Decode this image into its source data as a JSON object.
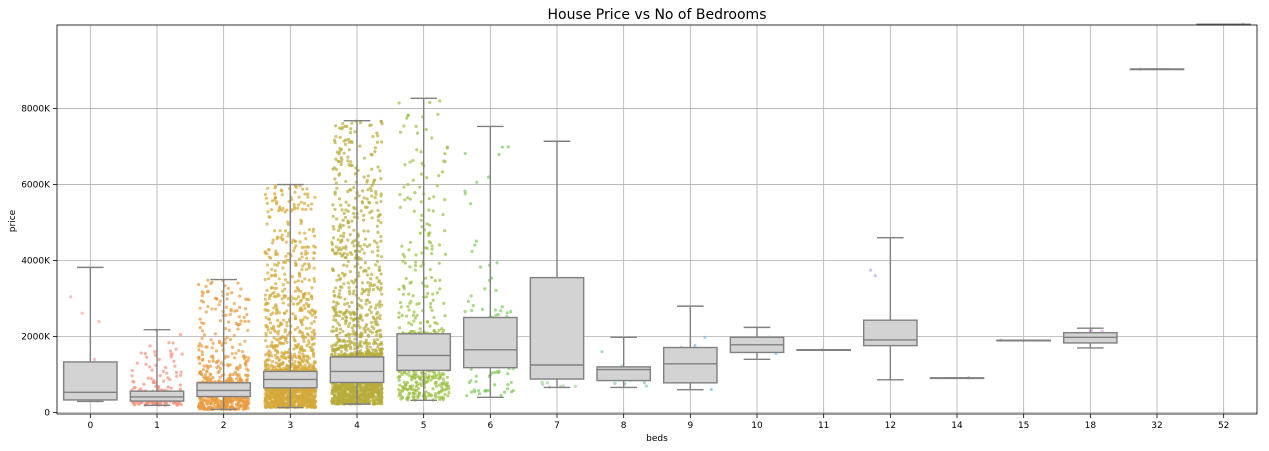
{
  "chart_data": {
    "type": "box",
    "title": "House Price vs No of Bedrooms",
    "xlabel": "beds",
    "ylabel": "price",
    "yunit": "K",
    "ylim": [
      -40,
      10200
    ],
    "yticks": [
      0,
      2000,
      4000,
      6000,
      8000
    ],
    "ytick_labels": [
      "0",
      "2000K",
      "4000K",
      "6000K",
      "8000K"
    ],
    "grid": true,
    "categories": [
      "0",
      "1",
      "2",
      "3",
      "4",
      "5",
      "6",
      "7",
      "8",
      "9",
      "10",
      "11",
      "12",
      "14",
      "15",
      "18",
      "32",
      "52"
    ],
    "box_color": "#d3d3d3",
    "line_color": "#808080",
    "boxes": [
      {
        "category": "0",
        "whisker_low": 290,
        "q1": 330,
        "median": 530,
        "q3": 1330,
        "whisker_high": 3820
      },
      {
        "category": "1",
        "whisker_low": 190,
        "q1": 300,
        "median": 410,
        "q3": 560,
        "whisker_high": 2180
      },
      {
        "category": "2",
        "whisker_low": 80,
        "q1": 420,
        "median": 580,
        "q3": 780,
        "whisker_high": 3500
      },
      {
        "category": "3",
        "whisker_low": 130,
        "q1": 650,
        "median": 870,
        "q3": 1080,
        "whisker_high": 6000
      },
      {
        "category": "4",
        "whisker_low": 220,
        "q1": 790,
        "median": 1080,
        "q3": 1460,
        "whisker_high": 7680
      },
      {
        "category": "5",
        "whisker_low": 320,
        "q1": 1110,
        "median": 1500,
        "q3": 2070,
        "whisker_high": 8270
      },
      {
        "category": "6",
        "whisker_low": 400,
        "q1": 1180,
        "median": 1650,
        "q3": 2500,
        "whisker_high": 7530
      },
      {
        "category": "7",
        "whisker_low": 660,
        "q1": 880,
        "median": 1250,
        "q3": 3550,
        "whisker_high": 7140
      },
      {
        "category": "8",
        "whisker_low": 660,
        "q1": 840,
        "median": 1130,
        "q3": 1200,
        "whisker_high": 1980
      },
      {
        "category": "9",
        "whisker_low": 600,
        "q1": 780,
        "median": 1280,
        "q3": 1710,
        "whisker_high": 2800
      },
      {
        "category": "10",
        "whisker_low": 1400,
        "q1": 1580,
        "median": 1780,
        "q3": 1980,
        "whisker_high": 2240
      },
      {
        "category": "11",
        "whisker_low": 1650,
        "q1": 1650,
        "median": 1650,
        "q3": 1650,
        "whisker_high": 1650
      },
      {
        "category": "12",
        "whisker_low": 860,
        "q1": 1760,
        "median": 1910,
        "q3": 2430,
        "whisker_high": 4600
      },
      {
        "category": "14",
        "whisker_low": 910,
        "q1": 910,
        "median": 910,
        "q3": 910,
        "whisker_high": 910
      },
      {
        "category": "15",
        "whisker_low": 1900,
        "q1": 1900,
        "median": 1900,
        "q3": 1900,
        "whisker_high": 1900
      },
      {
        "category": "18",
        "whisker_low": 1700,
        "q1": 1830,
        "median": 1980,
        "q3": 2100,
        "whisker_high": 2220
      },
      {
        "category": "32",
        "whisker_low": 9040,
        "q1": 9040,
        "median": 9040,
        "q3": 9040,
        "whisker_high": 9040
      },
      {
        "category": "52",
        "whisker_low": 10220,
        "q1": 10220,
        "median": 10220,
        "q3": 10220,
        "whisker_high": 10220
      }
    ],
    "strip": {
      "note": "jittered individual listings per bedroom count; counts approximate",
      "colors": [
        "#f7a59f",
        "#f59380",
        "#e99a3f",
        "#d4a93a",
        "#b7ad3a",
        "#9bc041",
        "#7fcb60",
        "#a4d1a0",
        "#7fd1a6",
        "#7cc4d8",
        "#8cc6e8",
        "#9ab8f0",
        "#9fb2f5",
        "#b6a9f2",
        "#c7a3ef",
        "#e09fea",
        "#f0a0d8",
        "#f3a0c0"
      ],
      "counts": [
        8,
        260,
        900,
        2600,
        2600,
        700,
        140,
        14,
        11,
        6,
        4,
        1,
        5,
        1,
        1,
        3,
        1,
        1
      ]
    }
  }
}
